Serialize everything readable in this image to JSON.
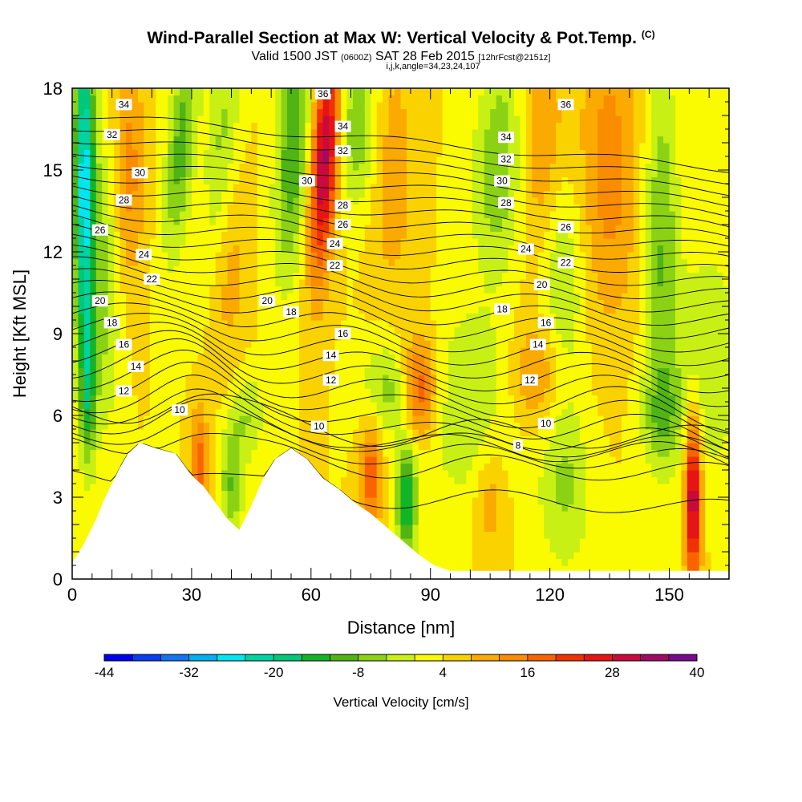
{
  "chart_data": {
    "type": "heatmap",
    "title": "Wind-Parallel Section at Max W: Vertical Velocity & Pot.Temp.",
    "title_tag": "(C)",
    "subtitle_parts": [
      "Valid 1500 JST ",
      "(0600Z)",
      " SAT 28 Feb 2015 ",
      "[12hrFcst@2151z]"
    ],
    "subtitle2": "i,j,k,angle=34,23,24,107",
    "xlabel": "Distance [nm]",
    "ylabel": "Height [Kft MSL]",
    "xlim": [
      0,
      165
    ],
    "ylim": [
      0,
      18
    ],
    "xticks": [
      0,
      30,
      60,
      90,
      120,
      150
    ],
    "yticks": [
      0,
      3,
      6,
      9,
      12,
      15,
      18
    ],
    "colorbar": {
      "label": "Vertical Velocity [cm/s]",
      "min": -44,
      "max": 40,
      "step": 4,
      "tick_labels": [
        -44,
        -32,
        -20,
        -8,
        4,
        16,
        28,
        40
      ],
      "colors": [
        "#0000f0",
        "#0a3cf0",
        "#1473f0",
        "#00aff0",
        "#00e6f0",
        "#00d2a0",
        "#00c878",
        "#14b428",
        "#50b414",
        "#8cd214",
        "#c8f014",
        "#fafa00",
        "#fad200",
        "#faaa00",
        "#fa8c00",
        "#fa6400",
        "#f03200",
        "#e61414",
        "#c80a3c",
        "#a00a64",
        "#780a8c"
      ]
    },
    "contour_labels": [
      {
        "x": 13,
        "y": 17.4,
        "text": "34"
      },
      {
        "x": 10,
        "y": 16.3,
        "text": "32"
      },
      {
        "x": 17,
        "y": 14.9,
        "text": "30"
      },
      {
        "x": 13,
        "y": 13.9,
        "text": "28"
      },
      {
        "x": 7,
        "y": 12.8,
        "text": "26"
      },
      {
        "x": 18,
        "y": 11.9,
        "text": "24"
      },
      {
        "x": 20,
        "y": 11.0,
        "text": "22"
      },
      {
        "x": 7,
        "y": 10.2,
        "text": "20"
      },
      {
        "x": 10,
        "y": 9.4,
        "text": "18"
      },
      {
        "x": 13,
        "y": 8.6,
        "text": "16"
      },
      {
        "x": 16,
        "y": 7.8,
        "text": "14"
      },
      {
        "x": 13,
        "y": 6.9,
        "text": "12"
      },
      {
        "x": 27,
        "y": 6.2,
        "text": "10"
      },
      {
        "x": 63,
        "y": 17.8,
        "text": "36"
      },
      {
        "x": 68,
        "y": 16.6,
        "text": "34"
      },
      {
        "x": 68,
        "y": 15.7,
        "text": "32"
      },
      {
        "x": 59,
        "y": 14.6,
        "text": "30"
      },
      {
        "x": 68,
        "y": 13.7,
        "text": "28"
      },
      {
        "x": 68,
        "y": 13.0,
        "text": "26"
      },
      {
        "x": 66,
        "y": 12.3,
        "text": "24"
      },
      {
        "x": 66,
        "y": 11.5,
        "text": "22"
      },
      {
        "x": 49,
        "y": 10.2,
        "text": "20"
      },
      {
        "x": 55,
        "y": 9.8,
        "text": "18"
      },
      {
        "x": 68,
        "y": 9.0,
        "text": "16"
      },
      {
        "x": 65,
        "y": 8.2,
        "text": "14"
      },
      {
        "x": 65,
        "y": 7.3,
        "text": "12"
      },
      {
        "x": 62,
        "y": 5.6,
        "text": "10"
      },
      {
        "x": 124,
        "y": 17.4,
        "text": "36"
      },
      {
        "x": 109,
        "y": 16.2,
        "text": "34"
      },
      {
        "x": 109,
        "y": 15.4,
        "text": "32"
      },
      {
        "x": 108,
        "y": 14.6,
        "text": "30"
      },
      {
        "x": 109,
        "y": 13.8,
        "text": "28"
      },
      {
        "x": 124,
        "y": 12.9,
        "text": "26"
      },
      {
        "x": 114,
        "y": 12.1,
        "text": "24"
      },
      {
        "x": 124,
        "y": 11.6,
        "text": "22"
      },
      {
        "x": 118,
        "y": 10.8,
        "text": "20"
      },
      {
        "x": 108,
        "y": 9.9,
        "text": "18"
      },
      {
        "x": 119,
        "y": 9.4,
        "text": "16"
      },
      {
        "x": 117,
        "y": 8.6,
        "text": "14"
      },
      {
        "x": 115,
        "y": 7.3,
        "text": "12"
      },
      {
        "x": 119,
        "y": 5.7,
        "text": "10"
      },
      {
        "x": 112,
        "y": 4.9,
        "text": "8"
      }
    ],
    "terrain": [
      [
        0,
        0.6
      ],
      [
        3,
        1.3
      ],
      [
        6,
        2.2
      ],
      [
        8,
        2.9
      ],
      [
        10,
        3.5
      ],
      [
        12,
        4.1
      ],
      [
        14,
        4.6
      ],
      [
        17,
        5.0
      ],
      [
        21,
        4.8
      ],
      [
        26,
        4.6
      ],
      [
        30,
        3.8
      ],
      [
        33,
        3.4
      ],
      [
        36,
        2.8
      ],
      [
        39,
        2.2
      ],
      [
        42,
        1.8
      ],
      [
        45,
        2.7
      ],
      [
        48,
        3.7
      ],
      [
        51,
        4.4
      ],
      [
        55,
        4.8
      ],
      [
        59,
        4.4
      ],
      [
        63,
        3.7
      ],
      [
        67,
        3.3
      ],
      [
        71,
        2.8
      ],
      [
        75,
        2.4
      ],
      [
        79,
        1.9
      ],
      [
        83,
        1.4
      ],
      [
        87,
        0.9
      ],
      [
        91,
        0.5
      ],
      [
        95,
        0.3
      ],
      [
        165,
        0.3
      ]
    ],
    "grid": false
  }
}
